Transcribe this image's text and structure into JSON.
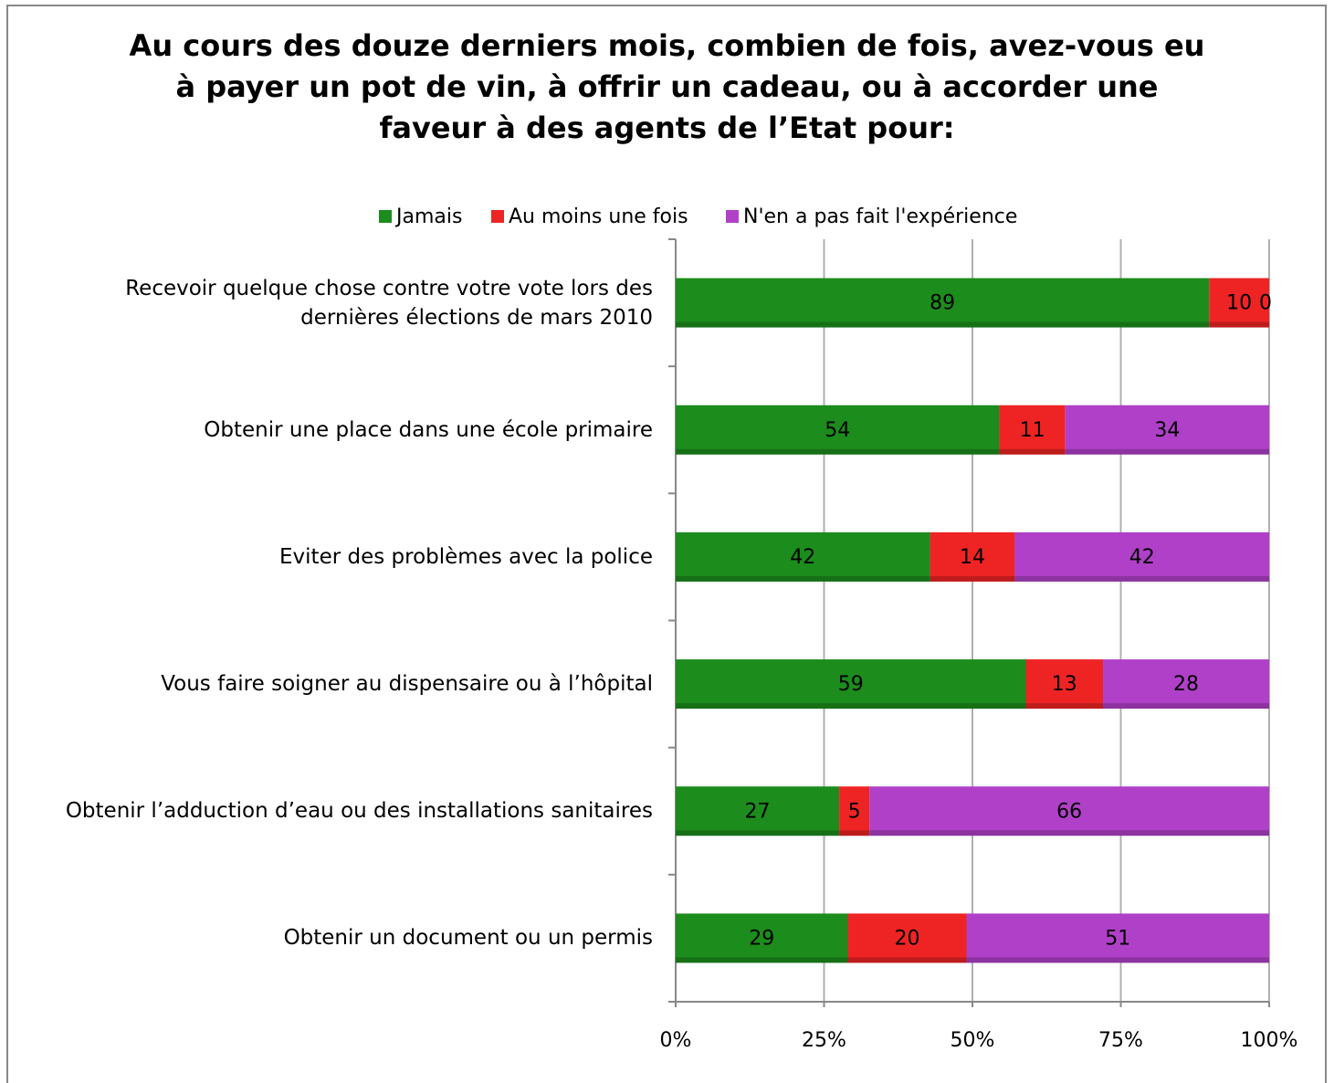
{
  "chart_data": {
    "type": "bar",
    "orientation": "horizontal",
    "stacking": "percent",
    "title": "Au cours des douze derniers mois, combien de fois, avez-vous eu\nà payer un pot de vin, à offrir un cadeau, ou à accorder une\nfaveur à des agents de l’Etat pour:",
    "categories": [
      "Recevoir quelque chose contre votre vote lors des\ndernières élections de mars 2010",
      "Obtenir une place dans une école primaire",
      "Eviter des problèmes avec la police",
      "Vous faire soigner au dispensaire ou à l’hôpital",
      "Obtenir l’adduction d’eau ou des installations sanitaires",
      "Obtenir un document ou un permis"
    ],
    "series": [
      {
        "name": "Jamais",
        "color": "#1c8c1c",
        "values": [
          89,
          54,
          42,
          59,
          27,
          29
        ]
      },
      {
        "name": "Au moins une fois",
        "color": "#ee2424",
        "values": [
          10,
          11,
          14,
          13,
          5,
          20
        ]
      },
      {
        "name": "N'en a pas fait l'expérience",
        "color": "#b040c8",
        "values": [
          0,
          34,
          42,
          28,
          66,
          51
        ]
      }
    ],
    "xlim": [
      0,
      100
    ],
    "xticks": [
      {
        "value": 0,
        "label": "0%"
      },
      {
        "value": 25,
        "label": "25%"
      },
      {
        "value": 50,
        "label": "50%"
      },
      {
        "value": 75,
        "label": "75%"
      },
      {
        "value": 100,
        "label": "100%"
      }
    ],
    "grid": true,
    "legend": "top"
  }
}
